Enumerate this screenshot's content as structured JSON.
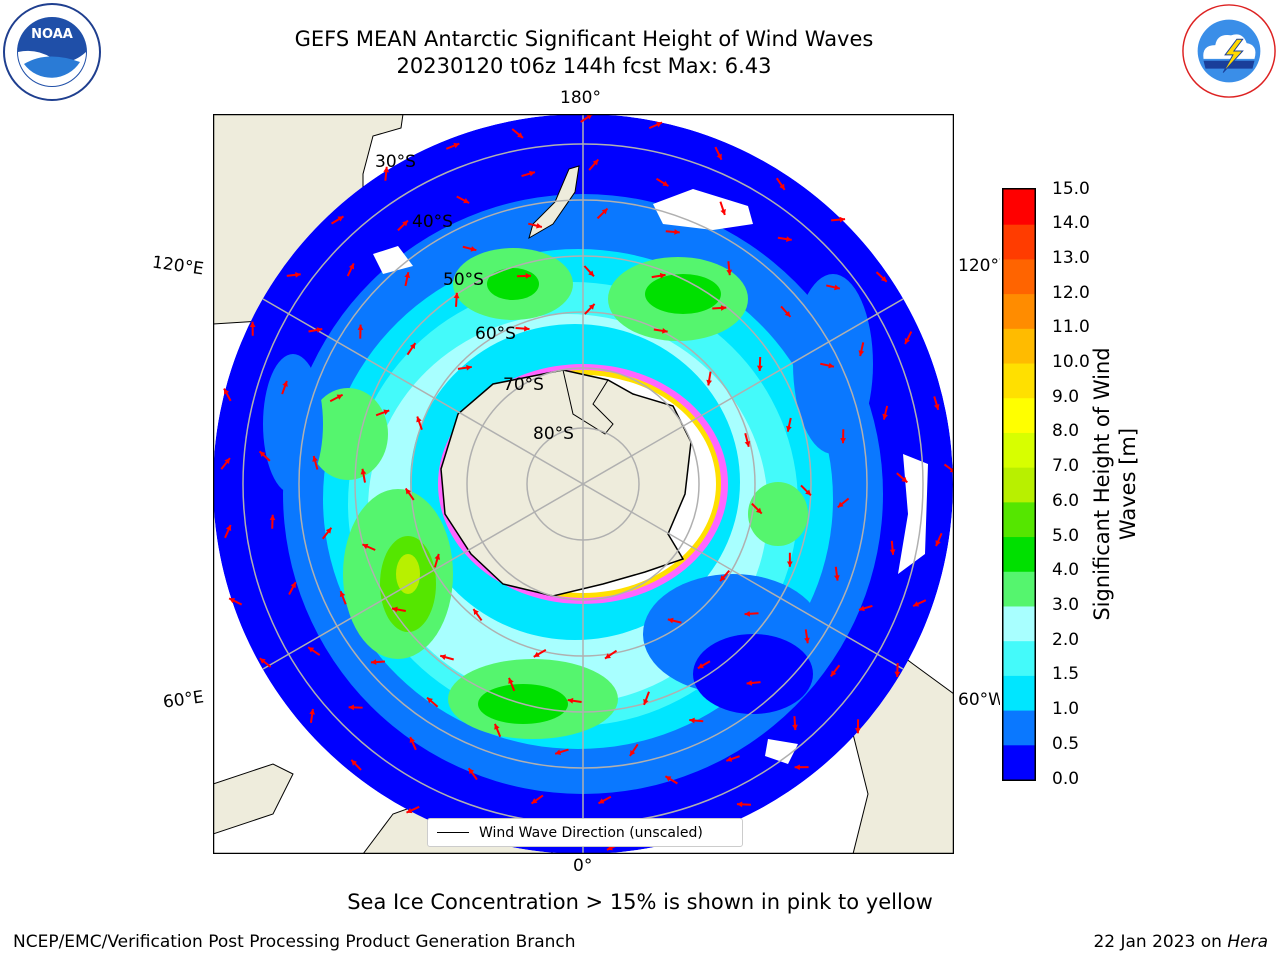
{
  "header": {
    "title_line1": "GEFS MEAN Antarctic Significant Height of Wind Waves",
    "title_line2": "20230120 t06z 144h fcst   Max: 6.43"
  },
  "logos": {
    "noaa_text": "NOAA",
    "noaa_ring": "NATIONAL OCEANIC AND ATMOSPHERIC ADMINISTRATION · U.S. DEPARTMENT OF COMMERCE",
    "nws_ring": "NATIONAL WEATHER SERVICE"
  },
  "map": {
    "longitude_labels": {
      "top": "180°",
      "bottom": "0°",
      "left_upper": "120°E",
      "left_lower": "60°E",
      "right_upper": "120°W",
      "right_lower": "60°W"
    },
    "latitude_labels": [
      "30°S",
      "40°S",
      "50°S",
      "60°S",
      "70°S",
      "80°S"
    ],
    "legend_label": "Wind Wave Direction (unscaled)",
    "arrow_color": "#ff0000",
    "land_color": "#eeecdc",
    "gridline_color": "#b0b0b0"
  },
  "colorbar": {
    "title": "Significant Height of Wind Waves [m]",
    "tick_labels": [
      "0.0",
      "0.5",
      "1.0",
      "1.5",
      "2.0",
      "3.0",
      "4.0",
      "5.0",
      "6.0",
      "7.0",
      "8.0",
      "9.0",
      "10.0",
      "11.0",
      "12.0",
      "13.0",
      "14.0",
      "15.0"
    ],
    "colors": [
      "#0000ff",
      "#0a78ff",
      "#00e6ff",
      "#44fafa",
      "#a8ffff",
      "#55f56e",
      "#00e000",
      "#55e600",
      "#b8f000",
      "#d7ff00",
      "#ffff00",
      "#ffe000",
      "#ffbb00",
      "#ff8c00",
      "#ff6400",
      "#ff3c00",
      "#ff0000"
    ]
  },
  "note": "Sea Ice Concentration > 15% is shown in pink to yellow",
  "footer": {
    "left": "NCEP/EMC/Verification Post Processing Product Generation Branch",
    "date": "22 Jan 2023 on",
    "host": "Hera"
  }
}
